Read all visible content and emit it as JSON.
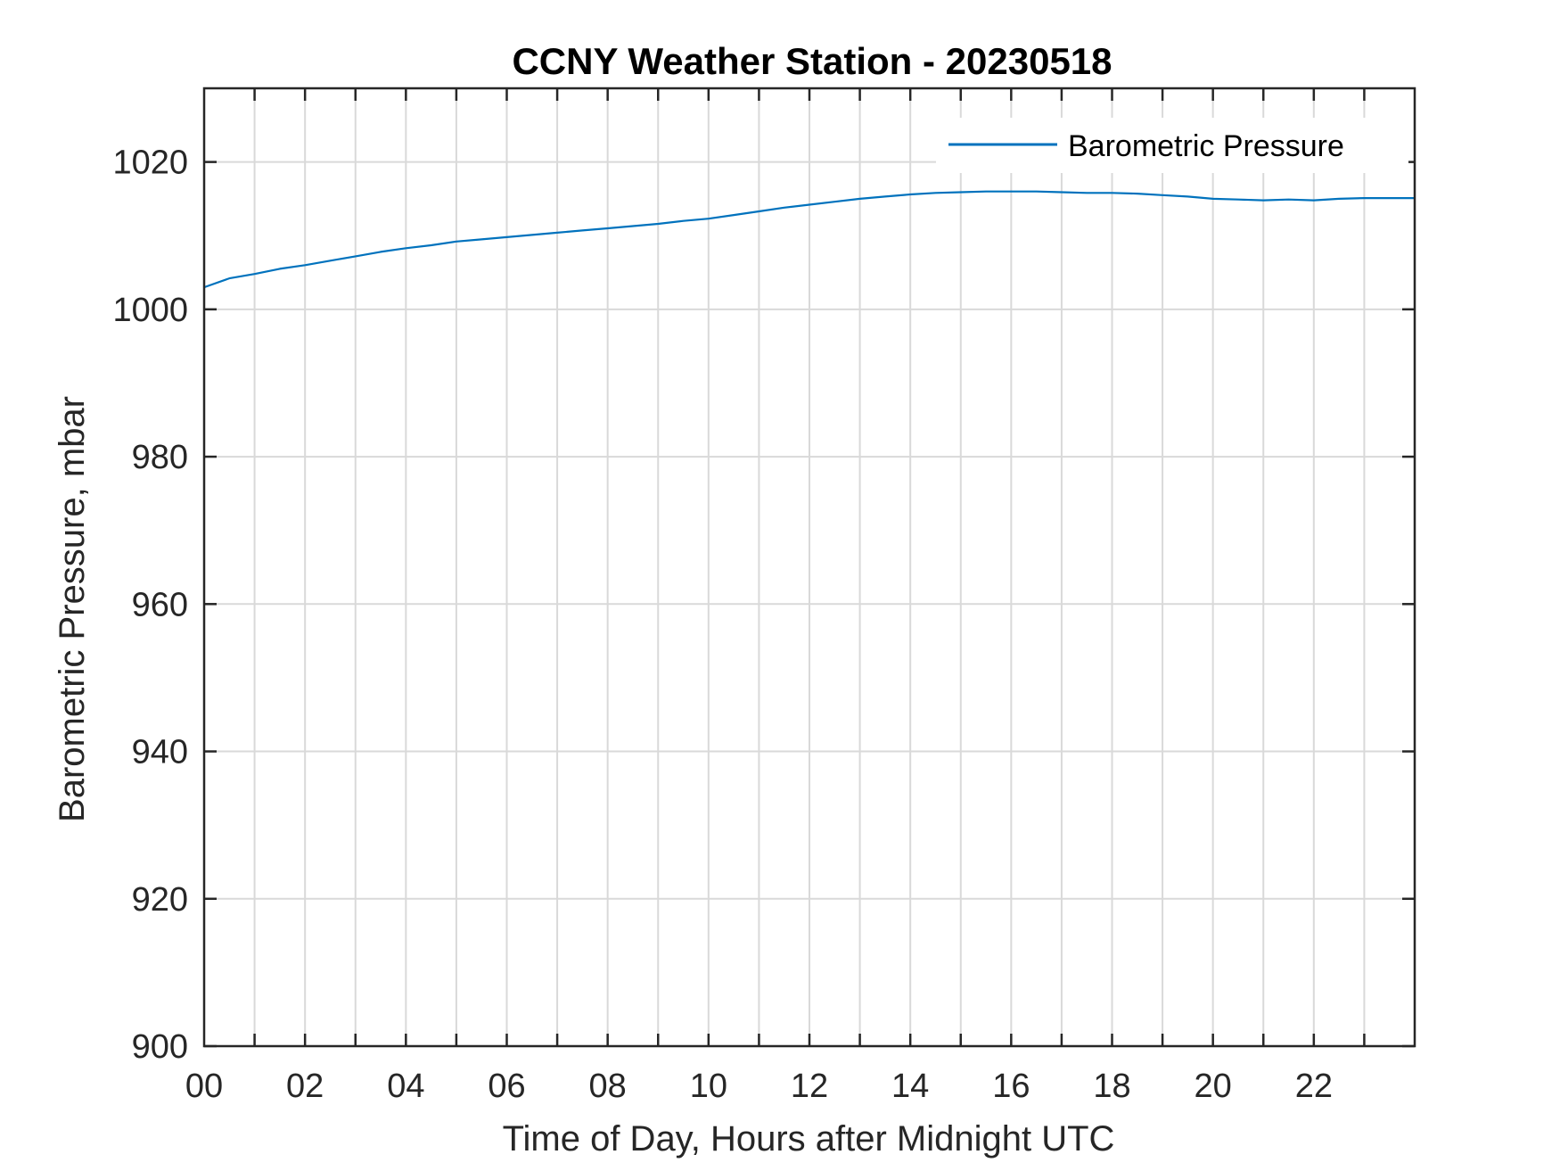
{
  "chart_data": {
    "type": "line",
    "title": "CCNY Weather Station - 20230518",
    "xlabel": "Time of Day, Hours after Midnight UTC",
    "ylabel": "Barometric Pressure, mbar",
    "xlim": [
      0,
      24
    ],
    "ylim": [
      900,
      1030
    ],
    "x_ticks": [
      0,
      2,
      4,
      6,
      8,
      10,
      12,
      14,
      16,
      18,
      20,
      22
    ],
    "x_tick_labels": [
      "00",
      "02",
      "04",
      "06",
      "08",
      "10",
      "12",
      "14",
      "16",
      "18",
      "20",
      "22"
    ],
    "y_ticks": [
      900,
      920,
      940,
      960,
      980,
      1000,
      1020
    ],
    "y_tick_labels": [
      "900",
      "920",
      "940",
      "960",
      "980",
      "1000",
      "1020"
    ],
    "grid": true,
    "grid_x_step_hours": 1,
    "legend_position": "top-right",
    "series": [
      {
        "name": "Barometric Pressure",
        "color": "#0072BD",
        "x": [
          0,
          0.5,
          1,
          1.5,
          2,
          2.5,
          3,
          3.5,
          4,
          4.5,
          5,
          5.5,
          6,
          6.5,
          7,
          7.5,
          8,
          8.5,
          9,
          9.5,
          10,
          10.5,
          11,
          11.5,
          12,
          12.5,
          13,
          13.5,
          14,
          14.5,
          15,
          15.5,
          16,
          16.5,
          17,
          17.5,
          18,
          18.5,
          19,
          19.5,
          20,
          20.5,
          21,
          21.5,
          22,
          22.5,
          23,
          23.5,
          24
        ],
        "y": [
          1003.0,
          1004.2,
          1004.8,
          1005.5,
          1006.0,
          1006.6,
          1007.2,
          1007.8,
          1008.3,
          1008.7,
          1009.2,
          1009.5,
          1009.8,
          1010.1,
          1010.4,
          1010.7,
          1011.0,
          1011.3,
          1011.6,
          1012.0,
          1012.3,
          1012.8,
          1013.3,
          1013.8,
          1014.2,
          1014.6,
          1015.0,
          1015.3,
          1015.6,
          1015.8,
          1015.9,
          1016.0,
          1016.0,
          1016.0,
          1015.9,
          1015.8,
          1015.8,
          1015.7,
          1015.5,
          1015.3,
          1015.0,
          1014.9,
          1014.8,
          1014.9,
          1014.8,
          1015.0,
          1015.1,
          1015.1,
          1015.1
        ]
      }
    ]
  }
}
